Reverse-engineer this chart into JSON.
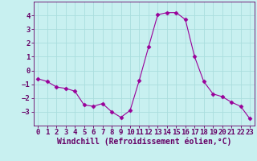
{
  "x": [
    0,
    1,
    2,
    3,
    4,
    5,
    6,
    7,
    8,
    9,
    10,
    11,
    12,
    13,
    14,
    15,
    16,
    17,
    18,
    19,
    20,
    21,
    22,
    23
  ],
  "y": [
    -0.6,
    -0.8,
    -1.2,
    -1.3,
    -1.5,
    -2.5,
    -2.6,
    -2.4,
    -3.0,
    -3.4,
    -2.9,
    -0.7,
    1.7,
    4.05,
    4.2,
    4.2,
    3.7,
    1.0,
    -0.8,
    -1.7,
    -1.9,
    -2.3,
    -2.6,
    -3.5
  ],
  "line_color": "#990099",
  "marker": "D",
  "marker_size": 2.5,
  "bg_color": "#c8f0f0",
  "grid_color": "#aadddd",
  "xlabel": "Windchill (Refroidissement éolien,°C)",
  "ylim": [
    -4,
    5
  ],
  "xlim": [
    -0.5,
    23.5
  ],
  "yticks": [
    -3,
    -2,
    -1,
    0,
    1,
    2,
    3,
    4
  ],
  "xticks": [
    0,
    1,
    2,
    3,
    4,
    5,
    6,
    7,
    8,
    9,
    10,
    11,
    12,
    13,
    14,
    15,
    16,
    17,
    18,
    19,
    20,
    21,
    22,
    23
  ],
  "xlabel_fontsize": 7.0,
  "tick_fontsize": 6.5
}
